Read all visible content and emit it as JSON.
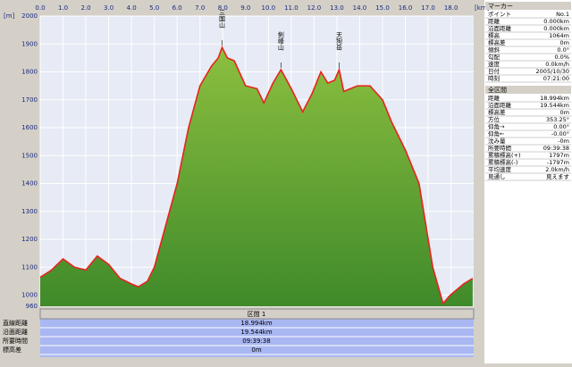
{
  "chart_data": {
    "type": "area",
    "x_unit": "[km]",
    "y_unit": "[m]",
    "x": [
      0,
      0.5,
      1.0,
      1.5,
      2.0,
      2.5,
      3.0,
      3.5,
      4.0,
      4.3,
      4.7,
      5.0,
      5.5,
      6.0,
      6.5,
      7.0,
      7.5,
      7.8,
      7.97,
      8.2,
      8.5,
      9.0,
      9.5,
      9.8,
      10.2,
      10.55,
      11.0,
      11.5,
      11.9,
      12.3,
      12.6,
      12.9,
      13.1,
      13.3,
      13.9,
      14.45,
      15.0,
      15.4,
      16.0,
      16.6,
      17.0,
      17.2,
      17.65,
      17.97,
      18.55,
      18.95
    ],
    "series": [
      {
        "name": "標高",
        "color": "#e8231c",
        "fill": "#6aa534",
        "values": [
          1064,
          1090,
          1130,
          1100,
          1090,
          1140,
          1110,
          1060,
          1040,
          1030,
          1050,
          1100,
          1250,
          1400,
          1600,
          1750,
          1820,
          1850,
          1888,
          1850,
          1840,
          1750,
          1740,
          1689,
          1760,
          1808,
          1740,
          1657,
          1720,
          1800,
          1760,
          1770,
          1808,
          1730,
          1750,
          1750,
          1700,
          1620,
          1520,
          1400,
          1200,
          1100,
          970,
          1000,
          1040,
          1060
        ]
      }
    ],
    "xlim": [
      0,
      18.994
    ],
    "ylim": [
      960,
      2000
    ],
    "xticks": [
      {
        "value": 0,
        "label": "0.0"
      },
      {
        "value": 1,
        "label": "1.0"
      },
      {
        "value": 2,
        "label": "2.0"
      },
      {
        "value": 3,
        "label": "3.0"
      },
      {
        "value": 4,
        "label": "4.0"
      },
      {
        "value": 5,
        "label": "5.0"
      },
      {
        "value": 6,
        "label": "6.0"
      },
      {
        "value": 7,
        "label": "7.0"
      },
      {
        "value": 8,
        "label": "8.0"
      },
      {
        "value": 9,
        "label": "9.0"
      },
      {
        "value": 10,
        "label": "10.0"
      },
      {
        "value": 11,
        "label": "11.0"
      },
      {
        "value": 12,
        "label": "12.0"
      },
      {
        "value": 13,
        "label": "13.0"
      },
      {
        "value": 14,
        "label": "14.0"
      },
      {
        "value": 15,
        "label": "15.0"
      },
      {
        "value": 16,
        "label": "16.0"
      },
      {
        "value": 17,
        "label": "17.0"
      },
      {
        "value": 18,
        "label": "18.0"
      }
    ],
    "yticks": [
      960,
      1000,
      1100,
      1200,
      1300,
      1400,
      1500,
      1600,
      1700,
      1800,
      1900,
      2000
    ],
    "grid": true,
    "annotations": [
      {
        "text": "三国山",
        "x": 7.97,
        "y": 1888
      },
      {
        "text": "剣峰山",
        "x": 10.55,
        "y": 1808
      },
      {
        "text": "天狗岳",
        "x": 13.1,
        "y": 1808
      }
    ]
  },
  "marker_panel": {
    "title": "マーカー",
    "rows": [
      [
        "ポイント",
        "No.1"
      ],
      [
        "距離",
        "0.000km"
      ],
      [
        "沿面距離",
        "0.000km"
      ],
      [
        "標高",
        "1064m"
      ],
      [
        "標高差",
        "0m"
      ],
      [
        "傾斜",
        "0.0°"
      ],
      [
        "勾配",
        "0.0%"
      ],
      [
        "速度",
        "0.0km/h"
      ],
      [
        "日付",
        "2005/10/30"
      ],
      [
        "時刻",
        "07:21:00"
      ]
    ]
  },
  "total_panel": {
    "title": "全区間",
    "rows": [
      [
        "距離",
        "18.994km"
      ],
      [
        "沿面距離",
        "19.544km"
      ],
      [
        "標高差",
        "0m"
      ],
      [
        "方位",
        "353.25°"
      ],
      [
        "仰角→",
        "0.00°"
      ],
      [
        "仰角←",
        "-0.00°"
      ],
      [
        "沈み量",
        "-0m"
      ],
      [
        "所要時間",
        "09:39:38"
      ],
      [
        "累積標高(+)",
        "1797m"
      ],
      [
        "累積標高(-)",
        "-1797m"
      ],
      [
        "平均速度",
        "2.0km/h"
      ],
      [
        "見通し",
        "見えます"
      ]
    ]
  },
  "section_panel": {
    "title": "区間 1",
    "labels": [
      "直線距離",
      "沿面距離",
      "所要時間",
      "標高差"
    ],
    "values": [
      "18.994km",
      "19.544km",
      "09:39:38",
      "0m"
    ]
  }
}
